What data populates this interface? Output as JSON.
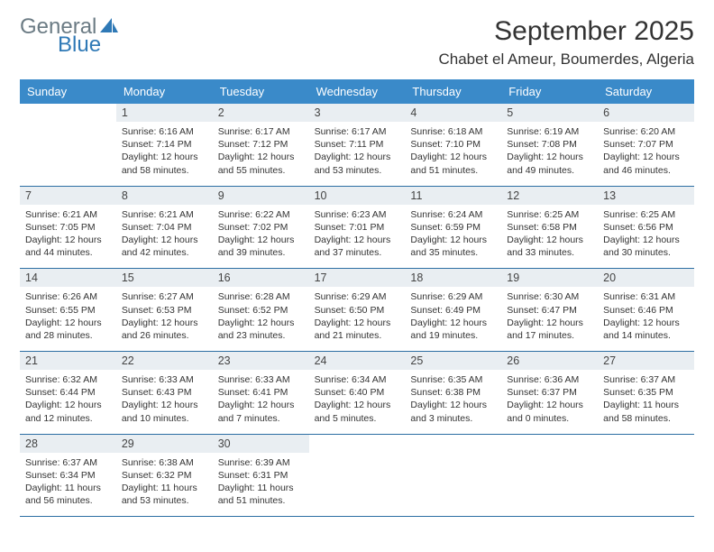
{
  "brand": {
    "name1": "General",
    "name2": "Blue",
    "color1": "#6b7b84",
    "color2": "#2f79b6",
    "sail_color": "#2f79b6"
  },
  "title": {
    "month": "September 2025",
    "location": "Chabet el Ameur, Boumerdes, Algeria"
  },
  "colors": {
    "header_bg": "#3a8ac9",
    "header_fg": "#ffffff",
    "daynum_bg": "#e9eef2",
    "rule": "#2c6ea3"
  },
  "dow": [
    "Sunday",
    "Monday",
    "Tuesday",
    "Wednesday",
    "Thursday",
    "Friday",
    "Saturday"
  ],
  "weeks": [
    [
      null,
      {
        "n": "1",
        "sr": "6:16 AM",
        "ss": "7:14 PM",
        "dl": "12 hours and 58 minutes."
      },
      {
        "n": "2",
        "sr": "6:17 AM",
        "ss": "7:12 PM",
        "dl": "12 hours and 55 minutes."
      },
      {
        "n": "3",
        "sr": "6:17 AM",
        "ss": "7:11 PM",
        "dl": "12 hours and 53 minutes."
      },
      {
        "n": "4",
        "sr": "6:18 AM",
        "ss": "7:10 PM",
        "dl": "12 hours and 51 minutes."
      },
      {
        "n": "5",
        "sr": "6:19 AM",
        "ss": "7:08 PM",
        "dl": "12 hours and 49 minutes."
      },
      {
        "n": "6",
        "sr": "6:20 AM",
        "ss": "7:07 PM",
        "dl": "12 hours and 46 minutes."
      }
    ],
    [
      {
        "n": "7",
        "sr": "6:21 AM",
        "ss": "7:05 PM",
        "dl": "12 hours and 44 minutes."
      },
      {
        "n": "8",
        "sr": "6:21 AM",
        "ss": "7:04 PM",
        "dl": "12 hours and 42 minutes."
      },
      {
        "n": "9",
        "sr": "6:22 AM",
        "ss": "7:02 PM",
        "dl": "12 hours and 39 minutes."
      },
      {
        "n": "10",
        "sr": "6:23 AM",
        "ss": "7:01 PM",
        "dl": "12 hours and 37 minutes."
      },
      {
        "n": "11",
        "sr": "6:24 AM",
        "ss": "6:59 PM",
        "dl": "12 hours and 35 minutes."
      },
      {
        "n": "12",
        "sr": "6:25 AM",
        "ss": "6:58 PM",
        "dl": "12 hours and 33 minutes."
      },
      {
        "n": "13",
        "sr": "6:25 AM",
        "ss": "6:56 PM",
        "dl": "12 hours and 30 minutes."
      }
    ],
    [
      {
        "n": "14",
        "sr": "6:26 AM",
        "ss": "6:55 PM",
        "dl": "12 hours and 28 minutes."
      },
      {
        "n": "15",
        "sr": "6:27 AM",
        "ss": "6:53 PM",
        "dl": "12 hours and 26 minutes."
      },
      {
        "n": "16",
        "sr": "6:28 AM",
        "ss": "6:52 PM",
        "dl": "12 hours and 23 minutes."
      },
      {
        "n": "17",
        "sr": "6:29 AM",
        "ss": "6:50 PM",
        "dl": "12 hours and 21 minutes."
      },
      {
        "n": "18",
        "sr": "6:29 AM",
        "ss": "6:49 PM",
        "dl": "12 hours and 19 minutes."
      },
      {
        "n": "19",
        "sr": "6:30 AM",
        "ss": "6:47 PM",
        "dl": "12 hours and 17 minutes."
      },
      {
        "n": "20",
        "sr": "6:31 AM",
        "ss": "6:46 PM",
        "dl": "12 hours and 14 minutes."
      }
    ],
    [
      {
        "n": "21",
        "sr": "6:32 AM",
        "ss": "6:44 PM",
        "dl": "12 hours and 12 minutes."
      },
      {
        "n": "22",
        "sr": "6:33 AM",
        "ss": "6:43 PM",
        "dl": "12 hours and 10 minutes."
      },
      {
        "n": "23",
        "sr": "6:33 AM",
        "ss": "6:41 PM",
        "dl": "12 hours and 7 minutes."
      },
      {
        "n": "24",
        "sr": "6:34 AM",
        "ss": "6:40 PM",
        "dl": "12 hours and 5 minutes."
      },
      {
        "n": "25",
        "sr": "6:35 AM",
        "ss": "6:38 PM",
        "dl": "12 hours and 3 minutes."
      },
      {
        "n": "26",
        "sr": "6:36 AM",
        "ss": "6:37 PM",
        "dl": "12 hours and 0 minutes."
      },
      {
        "n": "27",
        "sr": "6:37 AM",
        "ss": "6:35 PM",
        "dl": "11 hours and 58 minutes."
      }
    ],
    [
      {
        "n": "28",
        "sr": "6:37 AM",
        "ss": "6:34 PM",
        "dl": "11 hours and 56 minutes."
      },
      {
        "n": "29",
        "sr": "6:38 AM",
        "ss": "6:32 PM",
        "dl": "11 hours and 53 minutes."
      },
      {
        "n": "30",
        "sr": "6:39 AM",
        "ss": "6:31 PM",
        "dl": "11 hours and 51 minutes."
      },
      null,
      null,
      null,
      null
    ]
  ],
  "labels": {
    "sunrise": "Sunrise: ",
    "sunset": "Sunset: ",
    "daylight": "Daylight: "
  }
}
